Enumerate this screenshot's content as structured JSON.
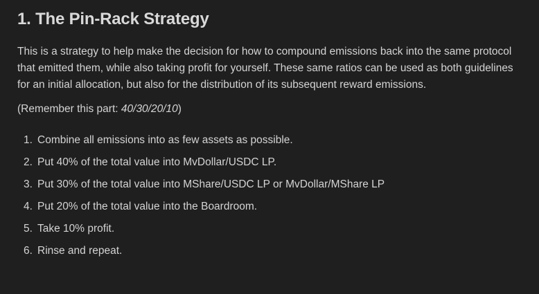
{
  "title": "1. The Pin-Rack Strategy",
  "intro": "This is a strategy to help make the decision for how to compound emissions back into the same protocol that emitted them, while also taking profit for yourself. These same ratios can be used as both guidelines for an initial allocation, but also for the distribution of its subsequent reward emissions.",
  "remember": {
    "prefix": "(Remember this part: ",
    "ratio": "40/30/20/10",
    "suffix": ")"
  },
  "steps": [
    {
      "num": "1.",
      "text": "Combine all emissions into as few assets as possible."
    },
    {
      "num": "2.",
      "text": "Put 40% of the total value into MvDollar/USDC LP."
    },
    {
      "num": "3.",
      "text": "Put 30% of the total value into MShare/USDC LP or MvDollar/MShare LP"
    },
    {
      "num": "4.",
      "text": "Put 20% of the total value into the Boardroom."
    },
    {
      "num": "5.",
      "text": "Take 10% profit."
    },
    {
      "num": "6.",
      "text": "Rinse and repeat."
    }
  ]
}
